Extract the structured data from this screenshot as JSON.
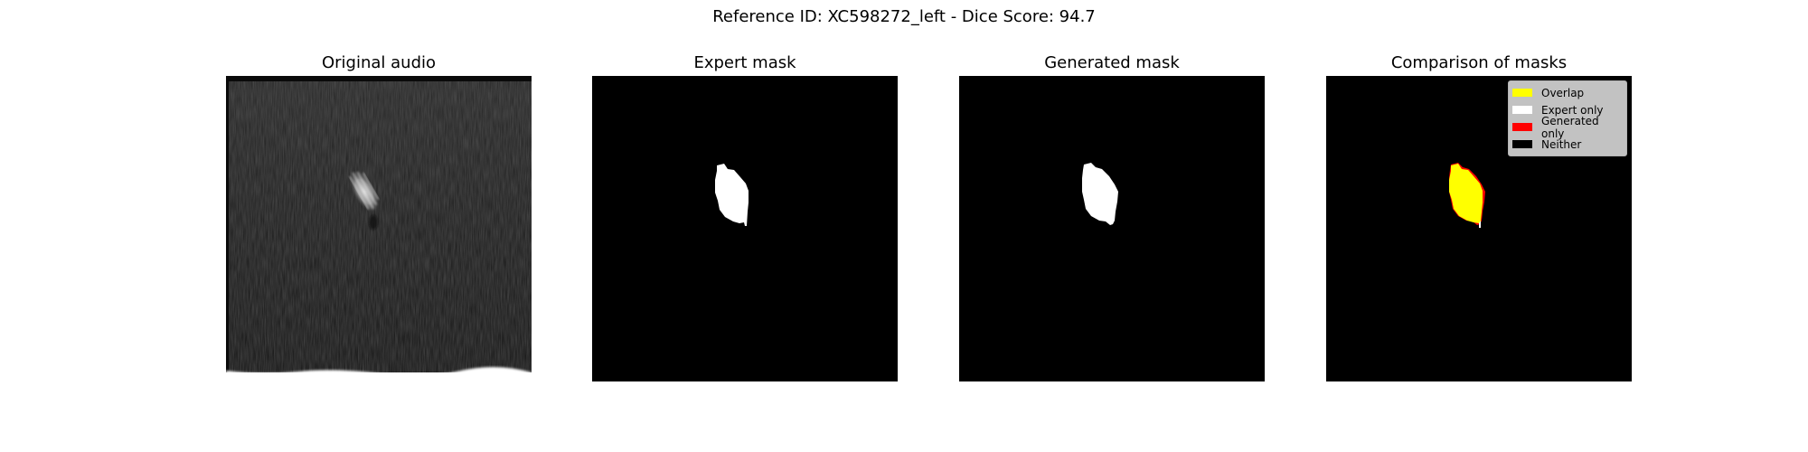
{
  "figure": {
    "suptitle": "Reference ID: XC598272_left - Dice Score: 94.7"
  },
  "panels": [
    {
      "title": "Original audio"
    },
    {
      "title": "Expert mask"
    },
    {
      "title": "Generated mask"
    },
    {
      "title": "Comparison of masks"
    }
  ],
  "legend": {
    "items": [
      {
        "label": "Overlap",
        "color": "#ffff00"
      },
      {
        "label": "Expert only",
        "color": "#ffffff"
      },
      {
        "label": "Generated only",
        "color": "#ff0000"
      },
      {
        "label": "Neither",
        "color": "#000000"
      }
    ]
  },
  "colors": {
    "mask_foreground": "#ffffff",
    "mask_background": "#000000",
    "overlap": "#ffff00",
    "generated_only": "#ff0000"
  }
}
